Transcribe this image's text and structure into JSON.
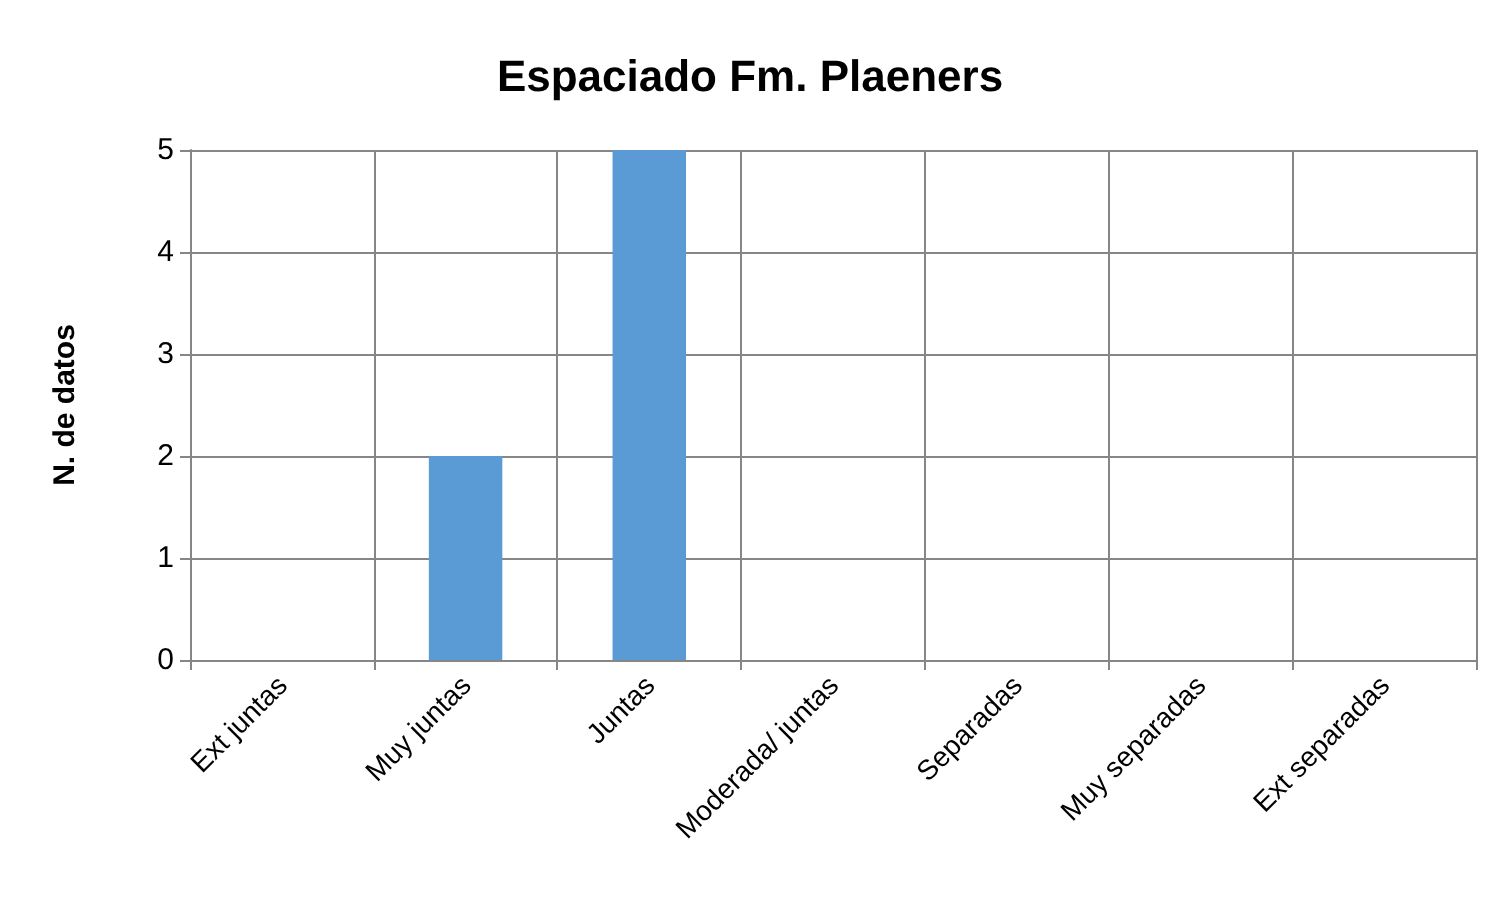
{
  "chart_data": {
    "type": "bar",
    "title": "Espaciado Fm. Plaeners",
    "ylabel": "N. de datos",
    "categories": [
      "Ext juntas",
      "Muy juntas",
      "Juntas",
      "Moderada/ juntas",
      "Separadas",
      "Muy separadas",
      "Ext separadas"
    ],
    "values": [
      0,
      2,
      5,
      0,
      0,
      0,
      0
    ],
    "color": "#5b9bd5",
    "ylim": [
      0,
      5
    ],
    "yticks": [
      0,
      1,
      2,
      3,
      4,
      5
    ],
    "grid": true
  }
}
